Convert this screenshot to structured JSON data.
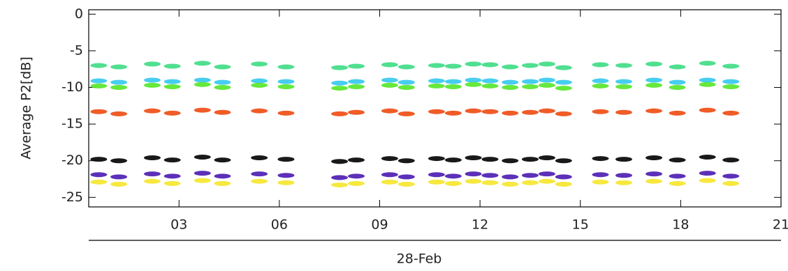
{
  "chart_data": {
    "type": "scatter",
    "ylabel": "Average  P2[dB]",
    "xlabel": "28-Feb",
    "x": [
      0.6,
      1.2,
      2.2,
      2.8,
      3.7,
      4.3,
      5.4,
      6.2,
      7.8,
      8.3,
      9.3,
      9.8,
      10.7,
      11.2,
      11.8,
      12.3,
      12.9,
      13.5,
      14.0,
      14.5,
      15.6,
      16.3,
      17.2,
      17.9,
      18.8,
      19.5
    ],
    "series": [
      {
        "color": "#3ddc84",
        "values": [
          -7.0,
          -7.2,
          -6.8,
          -7.1,
          -6.7,
          -7.2,
          -6.8,
          -7.2,
          -7.3,
          -7.1,
          -6.9,
          -7.2,
          -7.0,
          -7.1,
          -6.8,
          -6.9,
          -7.2,
          -7.0,
          -6.8,
          -7.3,
          -6.9,
          -7.0,
          -6.8,
          -7.2,
          -6.7,
          -7.1
        ]
      },
      {
        "color": "#33c8ee",
        "values": [
          -9.1,
          -9.3,
          -9.0,
          -9.2,
          -9.0,
          -9.3,
          -9.1,
          -9.2,
          -9.4,
          -9.2,
          -9.0,
          -9.3,
          -9.1,
          -9.2,
          -9.0,
          -9.1,
          -9.3,
          -9.2,
          -9.0,
          -9.3,
          -9.1,
          -9.2,
          -9.0,
          -9.3,
          -9.0,
          -9.2
        ]
      },
      {
        "color": "#55e628",
        "values": [
          -9.8,
          -10.0,
          -9.7,
          -9.9,
          -9.6,
          -10.0,
          -9.7,
          -9.9,
          -10.1,
          -9.9,
          -9.7,
          -10.0,
          -9.8,
          -9.9,
          -9.6,
          -9.8,
          -10.0,
          -9.9,
          -9.7,
          -10.1,
          -9.8,
          -9.9,
          -9.7,
          -10.0,
          -9.6,
          -9.9
        ]
      },
      {
        "color": "#ee4a10",
        "values": [
          -13.3,
          -13.6,
          -13.2,
          -13.5,
          -13.1,
          -13.4,
          -13.2,
          -13.5,
          -13.6,
          -13.4,
          -13.2,
          -13.6,
          -13.3,
          -13.5,
          -13.2,
          -13.3,
          -13.5,
          -13.4,
          -13.2,
          -13.6,
          -13.3,
          -13.4,
          -13.2,
          -13.5,
          -13.1,
          -13.5
        ]
      },
      {
        "color": "#000000",
        "values": [
          -19.8,
          -20.0,
          -19.6,
          -19.9,
          -19.5,
          -19.9,
          -19.6,
          -19.8,
          -20.1,
          -19.9,
          -19.7,
          -20.0,
          -19.7,
          -19.9,
          -19.6,
          -19.8,
          -20.0,
          -19.8,
          -19.6,
          -20.0,
          -19.7,
          -19.8,
          -19.6,
          -19.9,
          -19.5,
          -19.9
        ]
      },
      {
        "color": "#4a1ab0",
        "values": [
          -21.9,
          -22.2,
          -21.8,
          -22.1,
          -21.7,
          -22.1,
          -21.8,
          -22.0,
          -22.3,
          -22.1,
          -21.9,
          -22.2,
          -21.9,
          -22.1,
          -21.8,
          -22.0,
          -22.2,
          -22.0,
          -21.8,
          -22.2,
          -21.9,
          -22.0,
          -21.8,
          -22.1,
          -21.7,
          -22.1
        ]
      },
      {
        "color": "#f5e62a",
        "values": [
          -22.9,
          -23.2,
          -22.8,
          -23.1,
          -22.7,
          -23.1,
          -22.8,
          -23.0,
          -23.3,
          -23.1,
          -22.9,
          -23.2,
          -22.9,
          -23.1,
          -22.8,
          -23.0,
          -23.2,
          -23.0,
          -22.8,
          -23.2,
          -22.9,
          -23.0,
          -22.8,
          -23.1,
          -22.7,
          -23.1
        ]
      }
    ],
    "xlim": [
      0.3,
      21
    ],
    "ylim": [
      -26.3,
      0.6
    ],
    "xticks": [
      {
        "value": 3,
        "label": "03"
      },
      {
        "value": 6,
        "label": "06"
      },
      {
        "value": 9,
        "label": "09"
      },
      12,
      15,
      18,
      21
    ],
    "yticks": [
      0,
      -5,
      -10,
      -15,
      -20,
      -25
    ]
  }
}
